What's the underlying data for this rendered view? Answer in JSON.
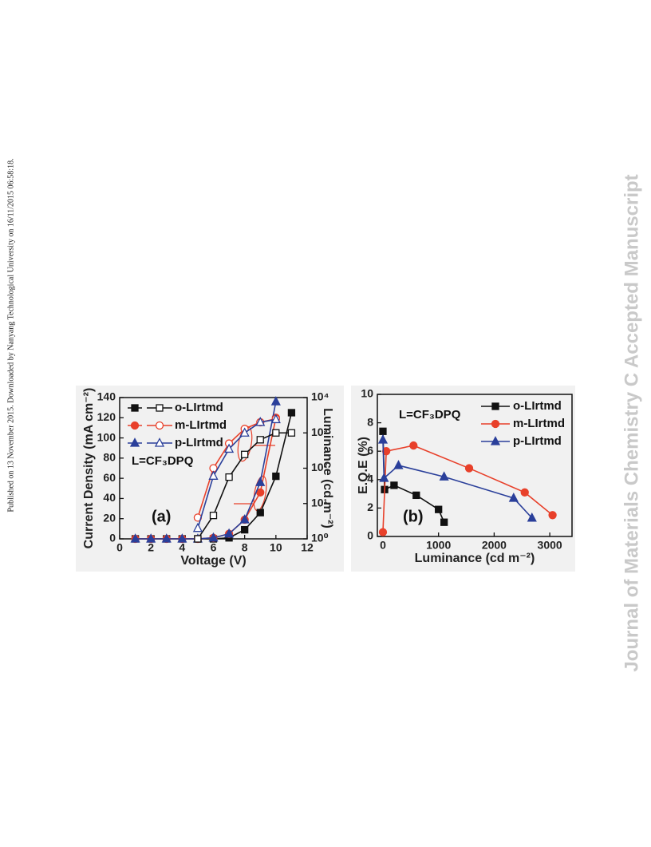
{
  "side_note": "Published on 13 November 2015. Downloaded by Nanyang Technological University on 16/11/2015 06:58:18.",
  "watermark": "Journal of Materials Chemistry C Accepted Manuscript",
  "chart_data": [
    {
      "type": "line",
      "x_label": "Voltage (V)",
      "y_label": "Current Density (mA cm⁻²)",
      "y2_label": "Luminance (cd m⁻²)",
      "xlim": [
        0,
        12
      ],
      "xticks": [
        0,
        2,
        4,
        6,
        8,
        10,
        12
      ],
      "ylim": [
        0,
        140
      ],
      "yticks": [
        0,
        20,
        40,
        60,
        80,
        100,
        120,
        140
      ],
      "y2lim": [
        1,
        10000
      ],
      "y2_log": true,
      "y2ticks": [
        {
          "value": 1,
          "label": "10⁰"
        },
        {
          "value": 10,
          "label": "10¹"
        },
        {
          "value": 100,
          "label": "10²"
        },
        {
          "value": 1000,
          "label": "10³"
        },
        {
          "value": 10000,
          "label": "10⁴"
        }
      ],
      "legend": "upper left",
      "annotations": [
        "L=CF₃DPQ",
        "(a)"
      ],
      "series": [
        {
          "name": "o-LIrtmd",
          "color": "#111111",
          "marker": "square",
          "filled": true,
          "x": [
            1,
            2,
            3,
            4,
            5,
            6,
            7,
            8,
            9,
            10,
            11
          ],
          "values": [
            0,
            0,
            0,
            0,
            0,
            0,
            1,
            9,
            26,
            62,
            125
          ]
        },
        {
          "name": "m-LIrtmd",
          "color": "#e8402a",
          "marker": "circle",
          "filled": true,
          "x": [
            1,
            2,
            3,
            4,
            5,
            6,
            7,
            8,
            9,
            10
          ],
          "values": [
            0,
            0,
            0,
            0,
            0,
            1,
            5,
            19,
            46,
            120
          ]
        },
        {
          "name": "p-LIrtmd",
          "color": "#2a3f9a",
          "marker": "triangle",
          "filled": true,
          "x": [
            1,
            2,
            3,
            4,
            5,
            6,
            7,
            8,
            9,
            10
          ],
          "values": [
            0,
            0,
            0,
            0,
            0,
            1,
            5,
            19,
            56,
            136
          ]
        },
        {
          "color": "#111111",
          "marker": "square",
          "filled": false,
          "axis": "y2",
          "x": [
            5,
            6,
            7,
            8,
            9,
            10,
            11
          ],
          "values": [
            1,
            4.6,
            56,
            245,
            640,
            1000,
            1000
          ]
        },
        {
          "color": "#e8402a",
          "marker": "circle",
          "filled": false,
          "axis": "y2",
          "x": [
            5,
            6,
            7,
            8,
            9,
            10
          ],
          "values": [
            4,
            100,
            500,
            1300,
            2000,
            2500
          ]
        },
        {
          "color": "#2a3f9a",
          "marker": "triangle",
          "filled": false,
          "axis": "y2",
          "x": [
            5,
            6,
            7,
            8,
            9,
            10
          ],
          "values": [
            2,
            60,
            350,
            1000,
            2000,
            2400
          ]
        }
      ]
    },
    {
      "type": "line",
      "x_label": "Luminance (cd m⁻²)",
      "y_label": "E.Q.E (%)",
      "xlim": [
        -100,
        3400
      ],
      "xticks": [
        0,
        1000,
        2000,
        3000
      ],
      "ylim": [
        0,
        10
      ],
      "yticks": [
        0,
        2,
        4,
        6,
        8,
        10
      ],
      "legend": "upper right",
      "annotations": [
        "L=CF₃DPQ",
        "(b)"
      ],
      "series": [
        {
          "name": "o-LIrtmd",
          "color": "#111111",
          "marker": "square",
          "filled": true,
          "x": [
            0,
            30,
            200,
            600,
            1000,
            1100
          ],
          "values": [
            7.4,
            3.3,
            3.6,
            2.9,
            1.9,
            1.0
          ]
        },
        {
          "name": "m-LIrtmd",
          "color": "#e8402a",
          "marker": "circle",
          "filled": true,
          "x": [
            0,
            60,
            550,
            1550,
            2550,
            3050
          ],
          "values": [
            0.3,
            6.0,
            6.4,
            4.8,
            3.1,
            1.5
          ]
        },
        {
          "name": "p-LIrtmd",
          "color": "#2a3f9a",
          "marker": "triangle",
          "filled": true,
          "x": [
            0,
            20,
            280,
            1100,
            2350,
            2680
          ],
          "values": [
            6.8,
            4.1,
            5.0,
            4.2,
            2.7,
            1.3
          ]
        }
      ]
    }
  ]
}
